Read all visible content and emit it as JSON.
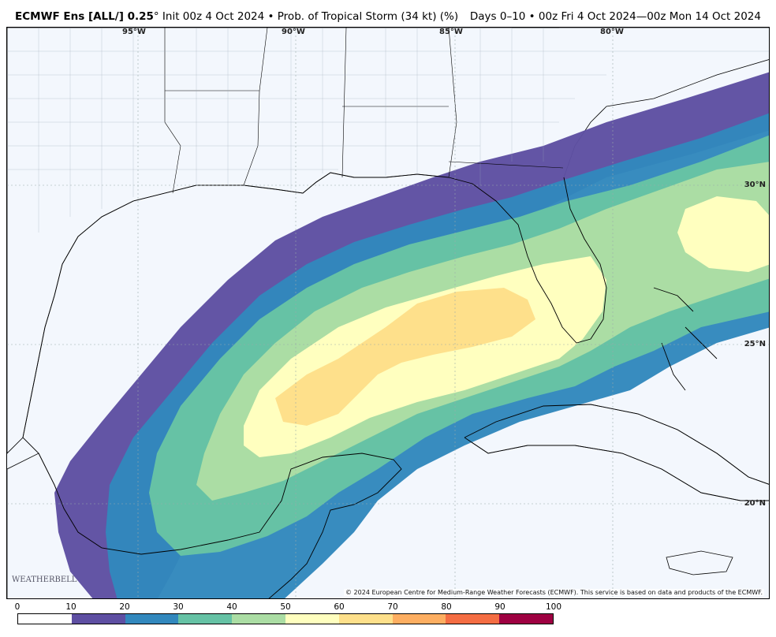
{
  "header": {
    "title_bold": "ECMWF Ens [ALL/] 0.25",
    "title_degree": "°",
    "title_rest": " Init 00z 4 Oct 2024 • Prob. of Tropical Storm (34 kt) (%)",
    "range": "Days 0–10 • 00z Fri 4 Oct 2024—00z Mon 14 Oct 2024"
  },
  "map": {
    "lon_labels": [
      "95°W",
      "90°W",
      "85°W",
      "80°W"
    ],
    "lat_labels": [
      "30°N",
      "25°N",
      "20°N"
    ],
    "credit": "© 2024 European Centre for Medium-Range Weather Forecasts (ECMWF). This service is based on data and products of the ECMWF.",
    "logo": "WEATHERBELL"
  },
  "colorbar": {
    "ticks": [
      "0",
      "10",
      "20",
      "30",
      "40",
      "50",
      "60",
      "70",
      "80",
      "90",
      "100"
    ],
    "colors": [
      "#ffffff",
      "#5e4fa2",
      "#3288bd",
      "#66c2a5",
      "#abdda4",
      "#ffffbf",
      "#fee08b",
      "#fdae61",
      "#f46d43",
      "#d53e4f"
    ],
    "last_color": "#9e0142"
  }
}
